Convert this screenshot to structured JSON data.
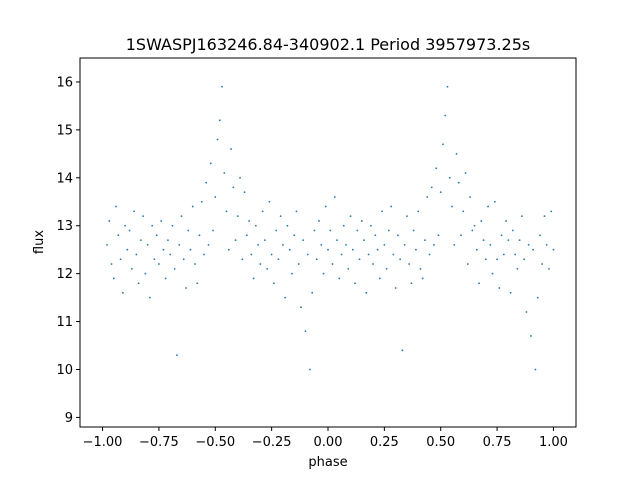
{
  "chart_data": {
    "type": "scatter",
    "title": "1SWASPJ163246.84-340902.1 Period 3957973.25s",
    "xlabel": "phase",
    "ylabel": "flux",
    "xlim": [
      -1.1,
      1.1
    ],
    "ylim": [
      8.8,
      16.5
    ],
    "xticks": [
      -1.0,
      -0.75,
      -0.5,
      -0.25,
      0.0,
      0.25,
      0.5,
      0.75,
      1.0
    ],
    "xtick_labels": [
      "−1.00",
      "−0.75",
      "−0.50",
      "−0.25",
      "0.00",
      "0.25",
      "0.50",
      "0.75",
      "1.00"
    ],
    "yticks": [
      9,
      10,
      11,
      12,
      13,
      14,
      15,
      16
    ],
    "ytick_labels": [
      "9",
      "10",
      "11",
      "12",
      "13",
      "14",
      "15",
      "16"
    ],
    "grid": false,
    "marker_color": "#1f77b4",
    "series": [
      {
        "phase_folded": true,
        "summary": {
          "phase_range": [
            -1.0,
            1.0
          ],
          "typical_flux_center": 12.6,
          "typical_flux_spread": [
            11.5,
            13.8
          ],
          "flare_peaks": [
            {
              "phase": -0.47,
              "flux_max": 15.9
            },
            {
              "phase": 0.53,
              "flux_max": 15.9
            }
          ],
          "dip_minima": [
            {
              "phase": -0.08,
              "flux_min": 10.0
            },
            {
              "phase": 0.92,
              "flux_min": 10.0
            }
          ]
        },
        "points": [
          [
            -0.98,
            12.6
          ],
          [
            -0.97,
            13.1
          ],
          [
            -0.96,
            12.2
          ],
          [
            -0.95,
            11.9
          ],
          [
            -0.94,
            13.4
          ],
          [
            -0.93,
            12.8
          ],
          [
            -0.92,
            12.3
          ],
          [
            -0.91,
            11.6
          ],
          [
            -0.9,
            13.0
          ],
          [
            -0.89,
            12.5
          ],
          [
            -0.88,
            12.9
          ],
          [
            -0.87,
            12.1
          ],
          [
            -0.86,
            13.3
          ],
          [
            -0.85,
            12.4
          ],
          [
            -0.84,
            11.8
          ],
          [
            -0.83,
            12.7
          ],
          [
            -0.82,
            13.2
          ],
          [
            -0.81,
            12.0
          ],
          [
            -0.8,
            12.6
          ],
          [
            -0.79,
            11.5
          ],
          [
            -0.78,
            13.0
          ],
          [
            -0.77,
            12.3
          ],
          [
            -0.76,
            12.8
          ],
          [
            -0.75,
            12.2
          ],
          [
            -0.74,
            13.1
          ],
          [
            -0.73,
            12.5
          ],
          [
            -0.72,
            11.9
          ],
          [
            -0.71,
            12.7
          ],
          [
            -0.7,
            12.4
          ],
          [
            -0.69,
            13.0
          ],
          [
            -0.68,
            12.1
          ],
          [
            -0.67,
            10.3
          ],
          [
            -0.66,
            12.6
          ],
          [
            -0.65,
            13.2
          ],
          [
            -0.64,
            12.3
          ],
          [
            -0.63,
            11.7
          ],
          [
            -0.62,
            12.9
          ],
          [
            -0.61,
            12.5
          ],
          [
            -0.6,
            13.4
          ],
          [
            -0.59,
            12.2
          ],
          [
            -0.58,
            11.8
          ],
          [
            -0.57,
            12.8
          ],
          [
            -0.56,
            13.5
          ],
          [
            -0.55,
            12.4
          ],
          [
            -0.54,
            13.9
          ],
          [
            -0.53,
            12.6
          ],
          [
            -0.52,
            14.3
          ],
          [
            -0.51,
            12.9
          ],
          [
            -0.5,
            13.6
          ],
          [
            -0.49,
            14.8
          ],
          [
            -0.48,
            15.2
          ],
          [
            -0.47,
            15.9
          ],
          [
            -0.46,
            14.1
          ],
          [
            -0.45,
            13.3
          ],
          [
            -0.44,
            12.5
          ],
          [
            -0.43,
            14.6
          ],
          [
            -0.42,
            13.8
          ],
          [
            -0.41,
            12.7
          ],
          [
            -0.4,
            13.2
          ],
          [
            -0.39,
            14.0
          ],
          [
            -0.38,
            12.3
          ],
          [
            -0.37,
            13.7
          ],
          [
            -0.36,
            12.8
          ],
          [
            -0.35,
            13.1
          ],
          [
            -0.34,
            12.4
          ],
          [
            -0.33,
            11.9
          ],
          [
            -0.32,
            13.0
          ],
          [
            -0.31,
            12.6
          ],
          [
            -0.3,
            12.2
          ],
          [
            -0.29,
            13.3
          ],
          [
            -0.28,
            12.7
          ],
          [
            -0.27,
            12.1
          ],
          [
            -0.26,
            13.5
          ],
          [
            -0.25,
            12.4
          ],
          [
            -0.24,
            11.8
          ],
          [
            -0.23,
            12.9
          ],
          [
            -0.22,
            12.3
          ],
          [
            -0.21,
            13.2
          ],
          [
            -0.2,
            12.6
          ],
          [
            -0.19,
            11.5
          ],
          [
            -0.18,
            13.0
          ],
          [
            -0.17,
            12.5
          ],
          [
            -0.16,
            12.0
          ],
          [
            -0.15,
            12.8
          ],
          [
            -0.14,
            13.3
          ],
          [
            -0.13,
            12.2
          ],
          [
            -0.12,
            11.3
          ],
          [
            -0.11,
            12.7
          ],
          [
            -0.1,
            10.8
          ],
          [
            -0.09,
            12.4
          ],
          [
            -0.08,
            10.0
          ],
          [
            -0.07,
            11.6
          ],
          [
            -0.06,
            12.9
          ],
          [
            -0.05,
            12.3
          ],
          [
            -0.04,
            13.1
          ],
          [
            -0.03,
            12.6
          ],
          [
            -0.02,
            12.0
          ],
          [
            -0.01,
            13.4
          ],
          [
            0.0,
            12.5
          ],
          [
            0.01,
            12.9
          ],
          [
            0.02,
            12.2
          ],
          [
            0.03,
            13.6
          ],
          [
            0.04,
            12.7
          ],
          [
            0.05,
            11.9
          ],
          [
            0.06,
            12.4
          ],
          [
            0.07,
            13.0
          ],
          [
            0.08,
            12.6
          ],
          [
            0.09,
            12.1
          ],
          [
            0.1,
            13.2
          ],
          [
            0.11,
            12.5
          ],
          [
            0.12,
            11.8
          ],
          [
            0.13,
            12.9
          ],
          [
            0.14,
            12.3
          ],
          [
            0.15,
            13.1
          ],
          [
            0.16,
            12.7
          ],
          [
            0.17,
            11.6
          ],
          [
            0.18,
            12.4
          ],
          [
            0.19,
            13.0
          ],
          [
            0.2,
            12.2
          ],
          [
            0.21,
            12.8
          ],
          [
            0.22,
            12.5
          ],
          [
            0.23,
            11.9
          ],
          [
            0.24,
            13.3
          ],
          [
            0.25,
            12.6
          ],
          [
            0.26,
            12.1
          ],
          [
            0.27,
            12.9
          ],
          [
            0.28,
            13.4
          ],
          [
            0.29,
            12.4
          ],
          [
            0.3,
            11.7
          ],
          [
            0.31,
            12.8
          ],
          [
            0.32,
            12.3
          ],
          [
            0.33,
            10.4
          ],
          [
            0.34,
            12.6
          ],
          [
            0.35,
            13.2
          ],
          [
            0.36,
            12.2
          ],
          [
            0.37,
            11.8
          ],
          [
            0.38,
            12.9
          ],
          [
            0.39,
            12.5
          ],
          [
            0.4,
            13.3
          ],
          [
            0.41,
            12.1
          ],
          [
            0.42,
            11.9
          ],
          [
            0.43,
            12.7
          ],
          [
            0.44,
            13.6
          ],
          [
            0.45,
            12.4
          ],
          [
            0.46,
            13.8
          ],
          [
            0.47,
            12.6
          ],
          [
            0.48,
            14.2
          ],
          [
            0.49,
            12.8
          ],
          [
            0.5,
            13.7
          ],
          [
            0.51,
            14.7
          ],
          [
            0.52,
            15.3
          ],
          [
            0.53,
            15.9
          ],
          [
            0.54,
            14.0
          ],
          [
            0.55,
            13.4
          ],
          [
            0.56,
            12.6
          ],
          [
            0.57,
            14.5
          ],
          [
            0.58,
            13.9
          ],
          [
            0.59,
            12.8
          ],
          [
            0.6,
            13.3
          ],
          [
            0.61,
            14.1
          ],
          [
            0.62,
            12.2
          ],
          [
            0.63,
            13.6
          ],
          [
            0.64,
            12.9
          ],
          [
            0.65,
            13.0
          ],
          [
            0.66,
            12.5
          ],
          [
            0.67,
            11.8
          ],
          [
            0.68,
            13.1
          ],
          [
            0.69,
            12.7
          ],
          [
            0.7,
            12.3
          ],
          [
            0.71,
            13.4
          ],
          [
            0.72,
            12.6
          ],
          [
            0.73,
            12.0
          ],
          [
            0.74,
            13.5
          ],
          [
            0.75,
            12.3
          ],
          [
            0.76,
            11.7
          ],
          [
            0.77,
            12.8
          ],
          [
            0.78,
            12.4
          ],
          [
            0.79,
            13.1
          ],
          [
            0.8,
            12.7
          ],
          [
            0.81,
            11.6
          ],
          [
            0.82,
            12.9
          ],
          [
            0.83,
            12.4
          ],
          [
            0.84,
            12.1
          ],
          [
            0.85,
            12.7
          ],
          [
            0.86,
            13.2
          ],
          [
            0.87,
            12.3
          ],
          [
            0.88,
            11.2
          ],
          [
            0.89,
            12.6
          ],
          [
            0.9,
            10.7
          ],
          [
            0.91,
            12.5
          ],
          [
            0.92,
            10.0
          ],
          [
            0.93,
            11.5
          ],
          [
            0.94,
            12.8
          ],
          [
            0.95,
            12.2
          ],
          [
            0.96,
            13.2
          ],
          [
            0.97,
            12.6
          ],
          [
            0.98,
            12.1
          ],
          [
            0.99,
            13.3
          ],
          [
            1.0,
            12.5
          ]
        ]
      }
    ]
  }
}
